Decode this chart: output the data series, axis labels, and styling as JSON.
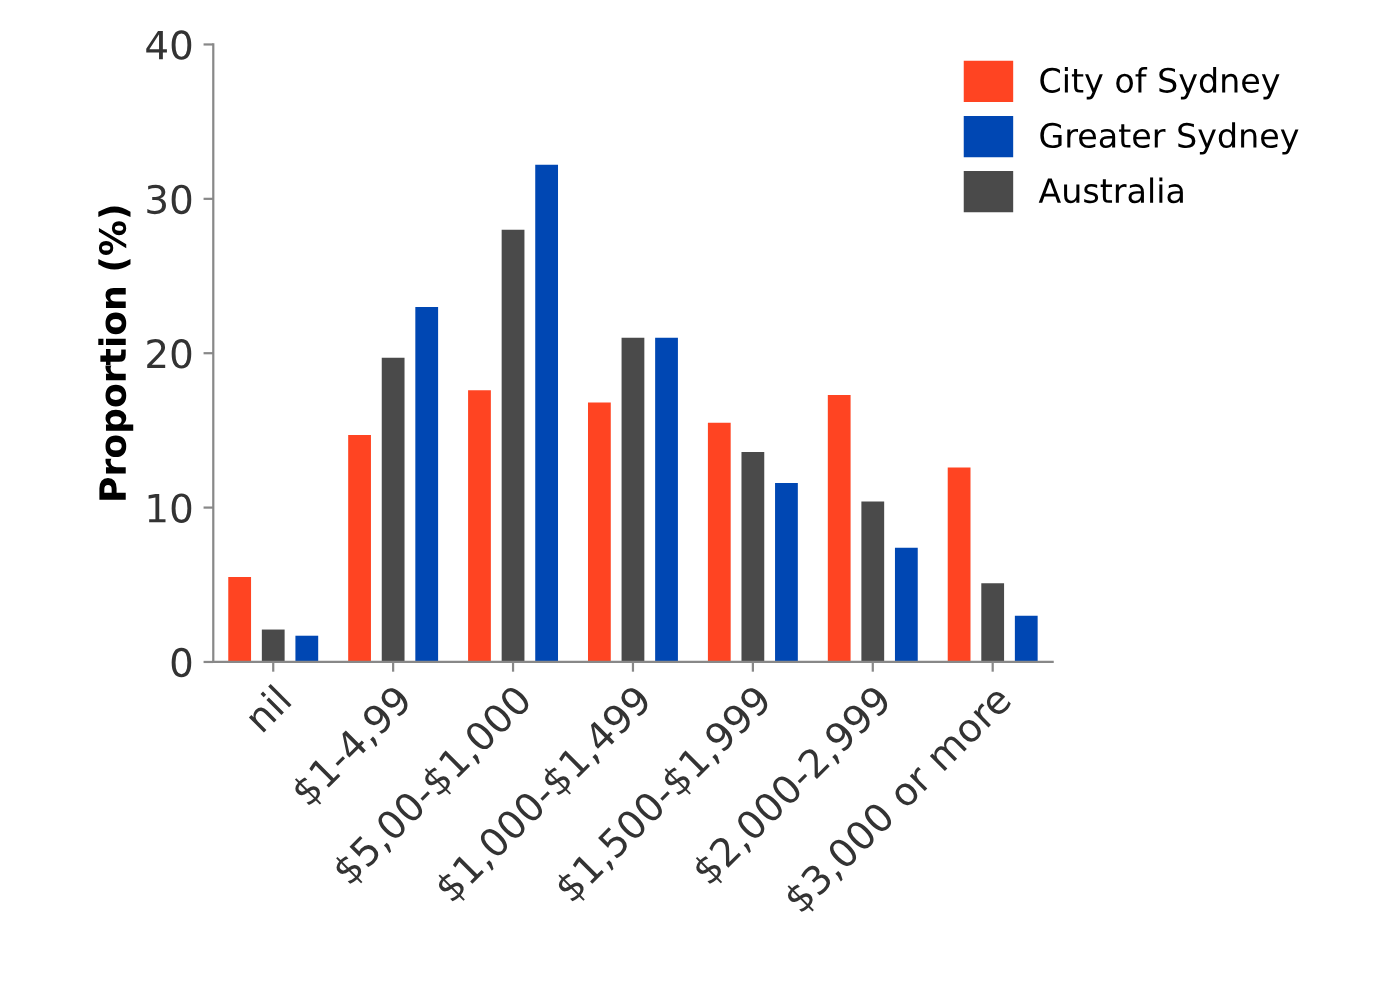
{
  "chart_data": {
    "type": "bar",
    "ylabel": "Proportion (%)",
    "categories": [
      "nil",
      "$1-4,99",
      "$5,00-$1,000",
      "$1,000-$1,499",
      "$1,500-$1,999",
      "$2,000-2,999",
      "$3,000 or more"
    ],
    "series": [
      {
        "name": "City of Sydney",
        "color": "#ff4422",
        "values": [
          5.5,
          14.7,
          17.6,
          16.8,
          15.5,
          17.3,
          12.6
        ]
      },
      {
        "name": "Australia",
        "color": "#4a4a4a",
        "values": [
          2.1,
          19.7,
          28.0,
          21.0,
          13.6,
          10.4,
          5.1
        ]
      },
      {
        "name": "Greater Sydney",
        "color": "#0047b3",
        "values": [
          1.7,
          23.0,
          32.2,
          21.0,
          11.6,
          7.4,
          3.0
        ]
      }
    ],
    "ylim": [
      0,
      40
    ],
    "yticks": [
      0,
      10,
      20,
      30,
      40
    ],
    "grid": false,
    "legend": "top right"
  }
}
